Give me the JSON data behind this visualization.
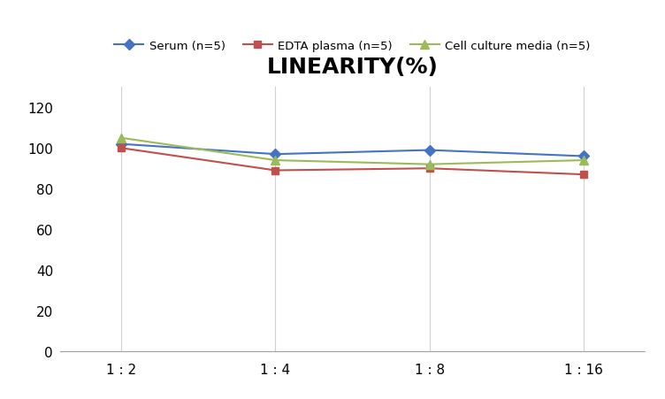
{
  "title": "LINEARITY(%)",
  "x_labels": [
    "1 : 2",
    "1 : 4",
    "1 : 8",
    "1 : 16"
  ],
  "x_positions": [
    0,
    1,
    2,
    3
  ],
  "series": [
    {
      "label": "Serum (n=5)",
      "values": [
        102,
        97,
        99,
        96
      ],
      "color": "#4472C4",
      "marker": "D",
      "marker_size": 6,
      "linewidth": 1.5
    },
    {
      "label": "EDTA plasma (n=5)",
      "values": [
        100,
        89,
        90,
        87
      ],
      "color": "#C0504D",
      "marker": "s",
      "marker_size": 6,
      "linewidth": 1.5
    },
    {
      "label": "Cell culture media (n=5)",
      "values": [
        105,
        94,
        92,
        94
      ],
      "color": "#9BBB59",
      "marker": "^",
      "marker_size": 7,
      "linewidth": 1.5
    }
  ],
  "ylim": [
    0,
    130
  ],
  "yticks": [
    0,
    20,
    40,
    60,
    80,
    100,
    120
  ],
  "background_color": "#ffffff",
  "grid_color": "#d0d0d0",
  "title_fontsize": 18,
  "legend_fontsize": 9.5,
  "tick_fontsize": 11
}
